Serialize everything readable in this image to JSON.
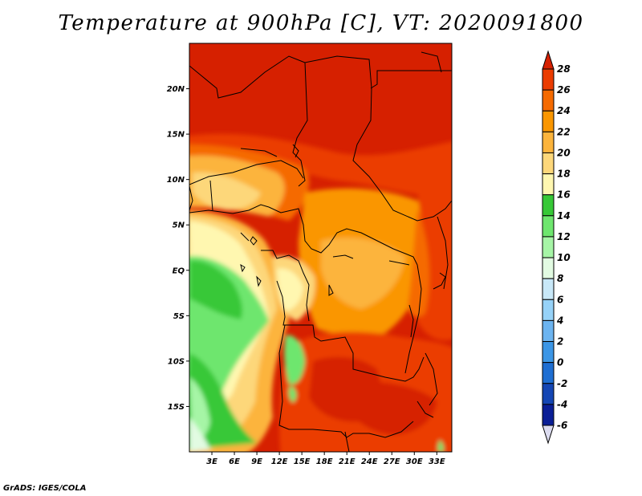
{
  "title": "Temperature at 900hPa [C], VT: 2020091800",
  "footer": "GrADS: IGES/COLA",
  "map": {
    "lon_range": [
      0,
      35
    ],
    "lat_range": [
      -20,
      25
    ],
    "lat_ticks": [
      {
        "label": "20N",
        "lat": 20
      },
      {
        "label": "15N",
        "lat": 15
      },
      {
        "label": "10N",
        "lat": 10
      },
      {
        "label": "5N",
        "lat": 5
      },
      {
        "label": "EQ",
        "lat": 0
      },
      {
        "label": "5S",
        "lat": -5
      },
      {
        "label": "10S",
        "lat": -10
      },
      {
        "label": "15S",
        "lat": -15
      }
    ],
    "lon_ticks": [
      {
        "label": "3E",
        "lon": 3
      },
      {
        "label": "6E",
        "lon": 6
      },
      {
        "label": "9E",
        "lon": 9
      },
      {
        "label": "12E",
        "lon": 12
      },
      {
        "label": "15E",
        "lon": 15
      },
      {
        "label": "18E",
        "lon": 18
      },
      {
        "label": "21E",
        "lon": 21
      },
      {
        "label": "24E",
        "lon": 24
      },
      {
        "label": "27E",
        "lon": 27
      },
      {
        "label": "30E",
        "lon": 30
      },
      {
        "label": "33E",
        "lon": 33
      }
    ]
  },
  "colorbar": {
    "labels": [
      "28",
      "26",
      "24",
      "22",
      "20",
      "18",
      "16",
      "14",
      "12",
      "10",
      "8",
      "6",
      "4",
      "2",
      "0",
      "-2",
      "-4",
      "-6"
    ],
    "colors_top_to_bottom": [
      "#d62000",
      "#eb3c00",
      "#f56a00",
      "#fa9600",
      "#fcb43c",
      "#fdd77a",
      "#fff7b0",
      "#37c837",
      "#6ee66e",
      "#a6f5a6",
      "#e2fbe2",
      "#c8e8f8",
      "#96d2f8",
      "#6cb4f0",
      "#3c96e6",
      "#1e6ed2",
      "#1446b4",
      "#0a1e96",
      "#000064",
      "#dcdcf0"
    ]
  }
}
